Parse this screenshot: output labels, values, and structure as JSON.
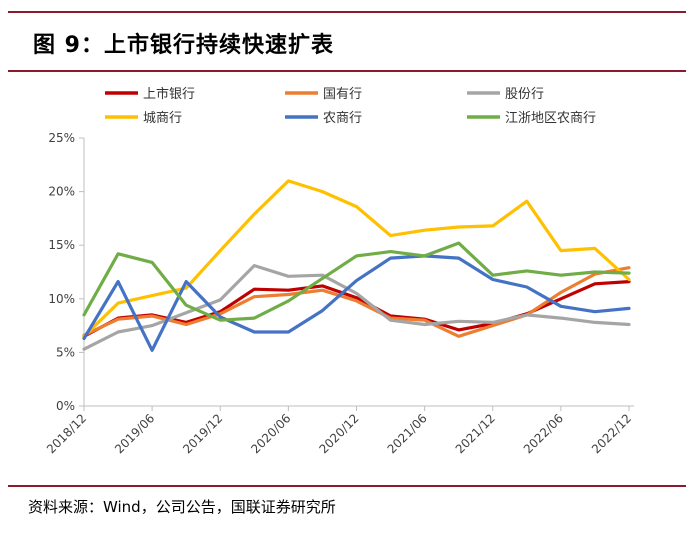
{
  "header": {
    "title": "图 9：上市银行持续快速扩表"
  },
  "footer": {
    "source": "资料来源：Wind，公司公告，国联证券研究所"
  },
  "chart_data": {
    "type": "line",
    "title": "图 9：上市银行持续快速扩表",
    "xlabel": "",
    "ylabel": "",
    "ylim": [
      0,
      25
    ],
    "y_ticks": [
      "0%",
      "5%",
      "10%",
      "15%",
      "20%",
      "25%"
    ],
    "x_ticks": [
      "2018/12",
      "2019/06",
      "2019/12",
      "2020/06",
      "2020/12",
      "2021/06",
      "2021/12",
      "2022/06",
      "2022/12"
    ],
    "x": [
      "2018/12",
      "2019/03",
      "2019/06",
      "2019/09",
      "2019/12",
      "2020/03",
      "2020/06",
      "2020/09",
      "2020/12",
      "2021/03",
      "2021/06",
      "2021/09",
      "2021/12",
      "2022/03",
      "2022/06",
      "2022/09",
      "2022/12"
    ],
    "grid": false,
    "legend_position": "top",
    "series": [
      {
        "name": "上市银行",
        "color": "#c00000",
        "values": [
          6.5,
          8.2,
          8.5,
          7.8,
          8.8,
          10.9,
          10.8,
          11.2,
          10.1,
          8.4,
          8.1,
          7.1,
          7.7,
          8.6,
          10.0,
          11.4,
          11.6
        ]
      },
      {
        "name": "国有行",
        "color": "#ed7d31",
        "values": [
          6.6,
          8.1,
          8.4,
          7.6,
          8.6,
          10.2,
          10.4,
          10.8,
          9.8,
          8.2,
          8.0,
          6.5,
          7.5,
          8.5,
          10.6,
          12.3,
          12.9
        ]
      },
      {
        "name": "股份行",
        "color": "#a5a5a5",
        "values": [
          5.3,
          6.9,
          7.5,
          8.7,
          9.9,
          13.1,
          12.1,
          12.2,
          10.5,
          8.0,
          7.6,
          7.9,
          7.8,
          8.5,
          8.2,
          7.8,
          7.6
        ]
      },
      {
        "name": "城商行",
        "color": "#ffc000",
        "values": [
          6.5,
          9.6,
          10.3,
          11.0,
          14.5,
          17.9,
          21.0,
          20.0,
          18.6,
          15.9,
          16.4,
          16.7,
          16.8,
          19.1,
          14.5,
          14.7,
          11.8
        ]
      },
      {
        "name": "农商行",
        "color": "#4472c4",
        "values": [
          6.3,
          11.6,
          5.2,
          11.6,
          8.3,
          6.9,
          6.9,
          8.9,
          11.7,
          13.8,
          14.0,
          13.8,
          11.8,
          11.1,
          9.3,
          8.8,
          9.1
        ]
      },
      {
        "name": "江浙地区农商行",
        "color": "#70ad47",
        "values": [
          8.5,
          14.2,
          13.4,
          9.4,
          8.0,
          8.2,
          9.8,
          11.9,
          14.0,
          14.4,
          14.0,
          15.2,
          12.2,
          12.6,
          12.2,
          12.5,
          12.4
        ]
      }
    ]
  }
}
